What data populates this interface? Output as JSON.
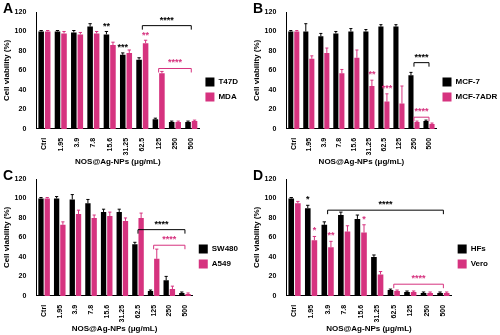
{
  "chart_data": [
    {
      "type": "bar",
      "title": "A",
      "x_label": "NOS@Ag-NPs (μg/mL)",
      "y_label": "Cell viability (%)",
      "categories": [
        "Ctrl",
        "1.95",
        "3.9",
        "7.8",
        "15.6",
        "31.25",
        "62.5",
        "125",
        "250",
        "500"
      ],
      "series": [
        {
          "name": "T47D",
          "color": "#000000",
          "values": [
            100,
            100,
            99,
            105,
            97,
            76,
            71,
            10,
            7,
            7
          ],
          "errors": [
            1,
            1,
            2,
            3,
            3,
            2,
            2,
            1,
            1,
            1
          ]
        },
        {
          "name": "MDA",
          "color": "#d6337f",
          "values": [
            100,
            98,
            97,
            98,
            86,
            78,
            88,
            57,
            7,
            8
          ],
          "errors": [
            1,
            2,
            2,
            2,
            3,
            3,
            3,
            2,
            1,
            1
          ]
        }
      ],
      "ylim": [
        0,
        120
      ],
      "yticks": [
        0,
        20,
        40,
        60,
        80,
        100,
        120
      ],
      "grid": false,
      "legend": "right",
      "annotations": [
        {
          "text": "**",
          "category": "15.6",
          "series": "T47D",
          "y": 100
        },
        {
          "text": "***",
          "category": "31.25",
          "series": "T47D",
          "y": 79
        },
        {
          "text": "**",
          "category": "62.5",
          "series": "MDA",
          "y": 91
        }
      ],
      "brackets": [
        {
          "text": "****",
          "from": "62.5",
          "to": "500",
          "y": 106,
          "series": "T47D"
        },
        {
          "text": "****",
          "from": "125",
          "to": "500",
          "y": 62,
          "series": "MDA"
        }
      ]
    },
    {
      "type": "bar",
      "title": "B",
      "x_label": "NOS@Ag-NPs (μg/mL)",
      "y_label": "Cell viability (%)",
      "categories": [
        "Ctrl",
        "1.95",
        "3.9",
        "7.8",
        "15.6",
        "31.25",
        "62.5",
        "125",
        "250",
        "500"
      ],
      "series": [
        {
          "name": "MCF-7",
          "color": "#000000",
          "values": [
            100,
            100,
            95,
            98,
            100,
            100,
            105,
            105,
            55,
            8
          ],
          "errors": [
            1,
            8,
            3,
            2,
            3,
            2,
            2,
            2,
            3,
            1
          ]
        },
        {
          "name": "MCF-7ADR",
          "color": "#d6337f",
          "values": [
            100,
            72,
            78,
            57,
            73,
            44,
            28,
            26,
            7,
            5
          ],
          "errors": [
            1,
            3,
            5,
            4,
            8,
            6,
            8,
            18,
            1,
            1
          ]
        }
      ],
      "ylim": [
        0,
        120
      ],
      "yticks": [
        0,
        20,
        40,
        60,
        80,
        100,
        120
      ],
      "grid": false,
      "legend": "right",
      "annotations": [
        {
          "text": "**",
          "category": "31.25",
          "series": "MCF-7ADR",
          "y": 51
        },
        {
          "text": "***",
          "category": "62.5",
          "series": "MCF-7ADR",
          "y": 37
        }
      ],
      "brackets": [
        {
          "text": "****",
          "from": "250",
          "to": "500",
          "y": 68,
          "series": "MCF-7"
        },
        {
          "text": "****",
          "from": "250",
          "to": "500",
          "y": 12,
          "series": "MCF-7ADR"
        }
      ]
    },
    {
      "type": "bar",
      "title": "C",
      "x_label": "NOS@Ag-NPs (μg/mL)",
      "y_label": "Cell viability (%)",
      "categories": [
        "Ctrl",
        "1.95",
        "3.9",
        "7.8",
        "15.6",
        "31.25",
        "62.5",
        "125",
        "250",
        "500"
      ],
      "series": [
        {
          "name": "SW480",
          "color": "#000000",
          "values": [
            100,
            100,
            99,
            95,
            86,
            86,
            53,
            5,
            16,
            3
          ],
          "errors": [
            1,
            2,
            5,
            4,
            3,
            3,
            2,
            1,
            4,
            1
          ]
        },
        {
          "name": "A549",
          "color": "#d6337f",
          "values": [
            100,
            73,
            84,
            80,
            82,
            77,
            80,
            38,
            7,
            2
          ],
          "errors": [
            1,
            3,
            4,
            3,
            4,
            3,
            5,
            10,
            3,
            1
          ]
        }
      ],
      "ylim": [
        0,
        120
      ],
      "yticks": [
        0,
        20,
        40,
        60,
        80,
        100,
        120
      ],
      "grid": false,
      "legend": "right",
      "annotations": [],
      "brackets": [
        {
          "text": "****",
          "from": "62.5",
          "to": "500",
          "y": 68,
          "series": "SW480"
        },
        {
          "text": "****",
          "from": "125",
          "to": "500",
          "y": 52,
          "series": "A549"
        }
      ]
    },
    {
      "type": "bar",
      "title": "D",
      "x_label": "NOS@Ag-NPs (μg/mL)",
      "y_label": "Cell viability (%)",
      "categories": [
        "Ctrl",
        "1.95",
        "3.9",
        "7.8",
        "15.6",
        "31.25",
        "62.5",
        "125",
        "250",
        "500"
      ],
      "series": [
        {
          "name": "HFs",
          "color": "#000000",
          "values": [
            100,
            90,
            73,
            83,
            79,
            40,
            6,
            4,
            3,
            3
          ],
          "errors": [
            1,
            3,
            3,
            3,
            4,
            2,
            1,
            1,
            1,
            1
          ]
        },
        {
          "name": "Vero",
          "color": "#d6337f",
          "values": [
            95,
            57,
            50,
            66,
            65,
            22,
            5,
            4,
            3,
            3
          ],
          "errors": [
            2,
            4,
            6,
            6,
            8,
            3,
            1,
            1,
            1,
            1
          ]
        }
      ],
      "ylim": [
        0,
        120
      ],
      "yticks": [
        0,
        20,
        40,
        60,
        80,
        100,
        120
      ],
      "grid": false,
      "legend": "right",
      "annotations": [
        {
          "text": "*",
          "category": "1.95",
          "series": "HFs",
          "y": 94
        },
        {
          "text": "*",
          "category": "1.95",
          "series": "Vero",
          "y": 62
        },
        {
          "text": "**",
          "category": "3.9",
          "series": "Vero",
          "y": 57
        },
        {
          "text": "*",
          "category": "15.6",
          "series": "Vero",
          "y": 74
        }
      ],
      "brackets": [
        {
          "text": "****",
          "from": "3.9",
          "to": "500",
          "y": 88,
          "series": "HFs"
        },
        {
          "text": "****",
          "from": "62.5",
          "to": "500",
          "y": 12,
          "series": "Vero"
        }
      ]
    }
  ]
}
